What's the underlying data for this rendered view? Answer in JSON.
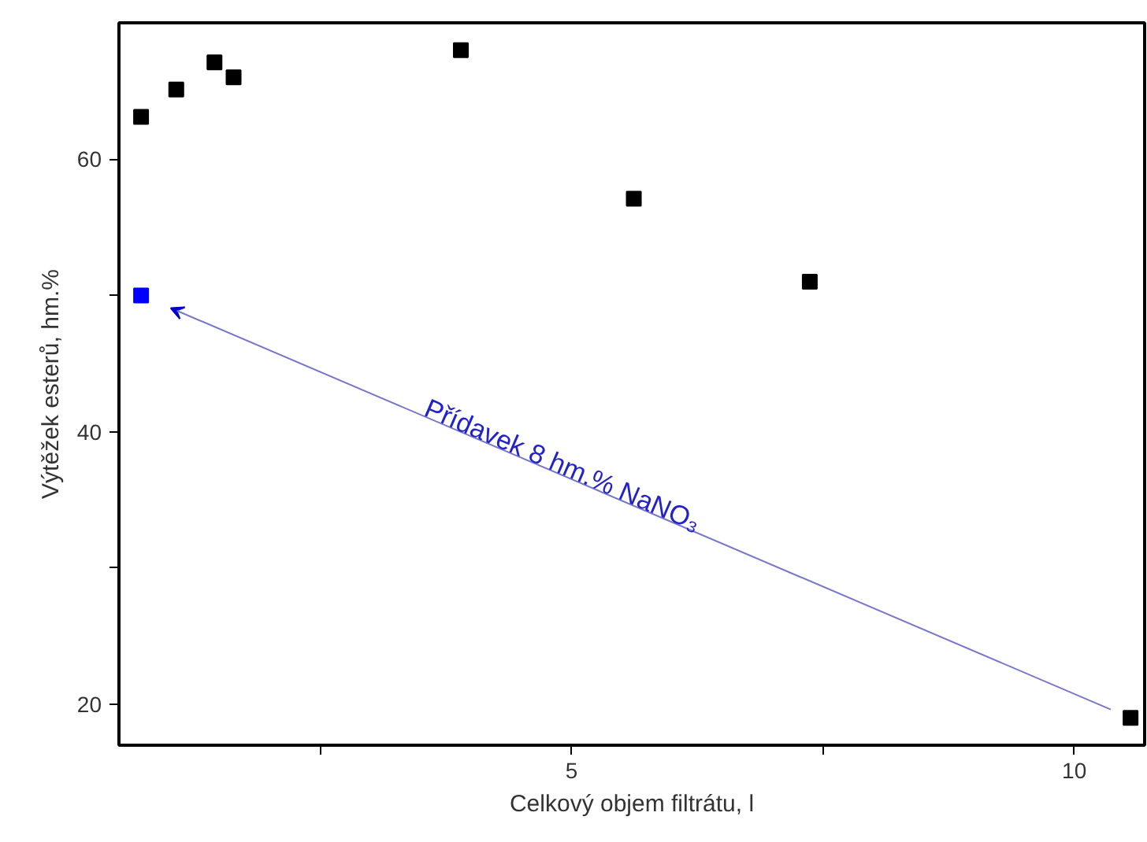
{
  "chart_data": {
    "type": "scatter",
    "xlabel": "Celkový objem filtrátu, l",
    "ylabel": "Výtěžek esterů, hm.%",
    "xlim": [
      0.5,
      10.7
    ],
    "ylim": [
      17,
      70
    ],
    "xticks": [
      {
        "value": 2.5,
        "label": null
      },
      5,
      {
        "value": 7.5,
        "label": null
      },
      10
    ],
    "yticks": [
      20,
      {
        "value": 30,
        "label": null
      },
      40,
      {
        "value": 50,
        "label": null
      },
      60
    ],
    "marker": "square",
    "series": [
      {
        "color": "#000000",
        "x": [
          0.72,
          1.07,
          1.45,
          1.64,
          3.9,
          5.62,
          7.37,
          10.56
        ],
        "values": [
          63.1,
          65.1,
          67.1,
          66.0,
          68.0,
          57.1,
          51.0,
          19.0
        ]
      },
      {
        "color": "#0000ff",
        "x": [
          0.72
        ],
        "values": [
          50.0
        ]
      }
    ],
    "annotations": [
      "Přídavek 8 hm.% NaNO₃"
    ]
  }
}
